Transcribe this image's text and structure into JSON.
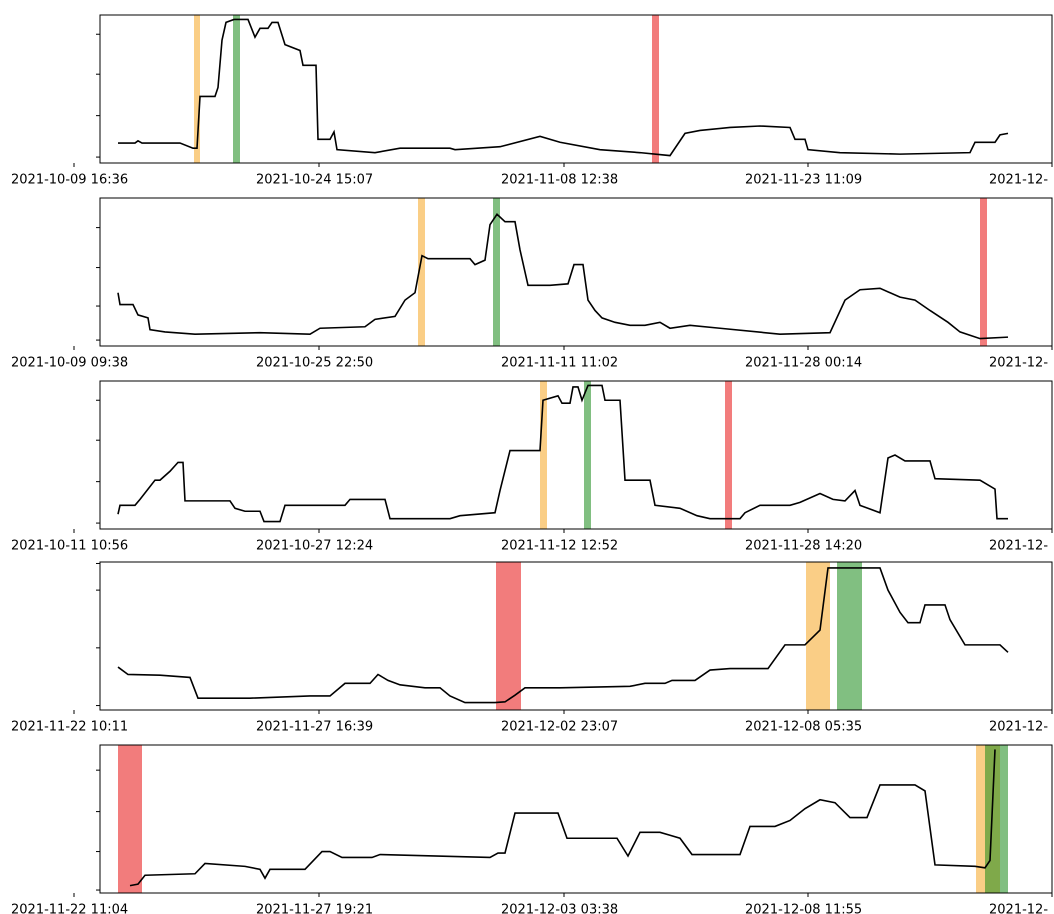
{
  "chart_data": [
    {
      "type": "line",
      "xlim": [
        100,
        1052
      ],
      "ylim": [
        0,
        100
      ],
      "xticks": [
        {
          "value": 74,
          "label": "2021-10-09 16:36"
        },
        {
          "value": 319,
          "label": "2021-10-24 15:07"
        },
        {
          "value": 564,
          "label": "2021-11-08 12:38"
        },
        {
          "value": 808,
          "label": "2021-11-23 11:09"
        },
        {
          "value": 1052,
          "label": "2021-12-"
        }
      ],
      "yticks": [
        4,
        32,
        60,
        87
      ],
      "x": [
        118,
        135,
        138,
        142,
        180,
        193,
        197,
        200,
        215,
        218,
        222,
        226,
        234,
        248,
        255,
        260,
        268,
        272,
        278,
        285,
        300,
        303,
        316,
        318,
        330,
        334,
        337,
        375,
        400,
        450,
        455,
        500,
        540,
        560,
        600,
        640,
        670,
        685,
        700,
        730,
        760,
        790,
        795,
        805,
        808,
        840,
        900,
        970,
        975,
        995,
        1000,
        1008
      ],
      "series": [
        {
          "color": "#000000",
          "values": [
            13.5,
            13.5,
            15,
            13.5,
            13.5,
            10,
            10,
            45,
            45,
            51,
            83,
            95,
            97,
            97,
            85,
            91,
            91,
            95,
            95,
            80,
            76,
            66,
            66,
            16,
            16,
            21,
            9,
            7,
            10,
            10,
            9,
            11,
            18,
            14,
            9,
            7,
            5,
            20,
            22,
            24,
            25,
            24,
            16,
            16,
            9,
            7,
            6,
            7,
            14,
            14,
            19,
            20
          ]
        }
      ],
      "spans": [
        {
          "start": 194,
          "end": 200,
          "color": "#f5a623"
        },
        {
          "start": 233,
          "end": 240,
          "color": "#1a8a1a"
        },
        {
          "start": 652,
          "end": 659,
          "color": "#e81010"
        }
      ]
    },
    {
      "type": "line",
      "xlim": [
        100,
        1052
      ],
      "ylim": [
        0,
        100
      ],
      "xticks": [
        {
          "value": 74,
          "label": "2021-10-09 09:38"
        },
        {
          "value": 319,
          "label": "2021-10-25 22:50"
        },
        {
          "value": 564,
          "label": "2021-11-11 11:02"
        },
        {
          "value": 808,
          "label": "2021-11-28 00:14"
        },
        {
          "value": 1052,
          "label": "2021-12-"
        }
      ],
      "yticks": [
        4,
        27,
        53,
        80
      ],
      "x": [
        118,
        120,
        133,
        138,
        148,
        150,
        165,
        195,
        260,
        310,
        320,
        365,
        375,
        395,
        405,
        415,
        422,
        428,
        470,
        475,
        485,
        490,
        497,
        505,
        515,
        520,
        528,
        550,
        568,
        574,
        583,
        588,
        595,
        602,
        615,
        630,
        645,
        660,
        670,
        690,
        720,
        780,
        830,
        845,
        860,
        880,
        900,
        915,
        930,
        948,
        960,
        980,
        1008
      ],
      "series": [
        {
          "color": "#000000",
          "values": [
            36,
            28,
            28,
            21,
            19,
            11,
            9.5,
            8,
            9,
            8,
            12,
            13,
            18,
            20,
            31,
            36,
            61,
            59,
            59,
            55,
            58,
            82,
            89,
            84,
            84,
            65,
            41,
            41,
            42,
            55,
            55,
            31,
            24,
            19,
            16,
            14,
            14,
            16,
            12,
            14,
            12,
            8,
            9,
            31,
            38,
            39,
            33,
            31,
            24,
            16,
            9.5,
            5,
            6
          ]
        }
      ],
      "spans": [
        {
          "start": 418,
          "end": 425,
          "color": "#f5a623"
        },
        {
          "start": 493,
          "end": 500,
          "color": "#1a8a1a"
        },
        {
          "start": 980,
          "end": 987,
          "color": "#e81010"
        }
      ]
    },
    {
      "type": "line",
      "xlim": [
        100,
        1052
      ],
      "ylim": [
        0,
        100
      ],
      "xticks": [
        {
          "value": 74,
          "label": "2021-10-11 10:56"
        },
        {
          "value": 319,
          "label": "2021-10-27 12:24"
        },
        {
          "value": 564,
          "label": "2021-11-12 12:52"
        },
        {
          "value": 808,
          "label": "2021-11-28 14:20"
        },
        {
          "value": 1052,
          "label": "2021-12-"
        }
      ],
      "yticks": [
        4,
        32,
        60,
        87
      ],
      "x": [
        118,
        120,
        135,
        140,
        155,
        160,
        170,
        178,
        183,
        185,
        230,
        235,
        245,
        260,
        264,
        280,
        285,
        345,
        350,
        385,
        390,
        450,
        460,
        495,
        500,
        510,
        540,
        543,
        558,
        562,
        570,
        573,
        578,
        582,
        588,
        602,
        605,
        620,
        625,
        650,
        655,
        680,
        697,
        710,
        740,
        745,
        760,
        790,
        800,
        820,
        833,
        845,
        855,
        860,
        880,
        888,
        895,
        905,
        930,
        935,
        980,
        995,
        997,
        1008
      ],
      "series": [
        {
          "color": "#000000",
          "values": [
            10,
            16,
            16,
            20,
            33,
            33,
            39,
            45,
            45,
            19,
            19,
            14,
            12,
            12,
            5,
            5,
            16,
            16,
            20,
            20,
            7,
            7,
            9,
            11,
            26,
            53,
            53,
            87,
            90,
            85,
            85,
            96,
            96,
            87,
            97,
            97,
            87,
            87,
            33,
            33,
            16,
            14,
            9,
            7,
            7,
            11,
            16,
            16,
            18,
            24,
            20,
            19,
            26,
            16,
            11,
            48,
            50,
            46,
            46,
            34,
            33,
            27,
            7,
            7
          ]
        }
      ],
      "spans": [
        {
          "start": 540,
          "end": 547,
          "color": "#f5a623"
        },
        {
          "start": 584,
          "end": 591,
          "color": "#1a8a1a"
        },
        {
          "start": 725,
          "end": 732,
          "color": "#e81010"
        }
      ]
    },
    {
      "type": "line",
      "xlim": [
        100,
        1052
      ],
      "ylim": [
        0,
        100
      ],
      "xticks": [
        {
          "value": 74,
          "label": "2021-11-22 10:11"
        },
        {
          "value": 319,
          "label": "2021-11-27 16:39"
        },
        {
          "value": 564,
          "label": "2021-12-02 23:07"
        },
        {
          "value": 808,
          "label": "2021-12-08 05:35"
        },
        {
          "value": 1052,
          "label": "2021-12-"
        }
      ],
      "yticks": [
        3,
        42,
        81,
        99
      ],
      "x": [
        118,
        128,
        160,
        190,
        198,
        250,
        310,
        330,
        345,
        370,
        378,
        388,
        400,
        425,
        440,
        450,
        465,
        495,
        505,
        515,
        525,
        545,
        560,
        630,
        645,
        665,
        672,
        695,
        710,
        730,
        768,
        785,
        805,
        820,
        828,
        880,
        888,
        900,
        908,
        920,
        925,
        945,
        950,
        965,
        975,
        1000,
        1008
      ],
      "series": [
        {
          "color": "#000000",
          "values": [
            29,
            24,
            23.5,
            22,
            8,
            8,
            9.5,
            9.5,
            18,
            18,
            24,
            20,
            17,
            15,
            15,
            9.5,
            5,
            5,
            5.5,
            10,
            15,
            15,
            15,
            16,
            18,
            18,
            20,
            20,
            27,
            28,
            28,
            44,
            44,
            54,
            96,
            96,
            81,
            66,
            59,
            59,
            71,
            71,
            61,
            44,
            44,
            44,
            39
          ]
        }
      ],
      "spans": [
        {
          "start": 496,
          "end": 521,
          "color": "#e81010"
        },
        {
          "start": 806,
          "end": 830,
          "color": "#f5a623"
        },
        {
          "start": 837,
          "end": 862,
          "color": "#1a8a1a"
        }
      ]
    },
    {
      "type": "line",
      "xlim": [
        100,
        1052
      ],
      "ylim": [
        0,
        100
      ],
      "xticks": [
        {
          "value": 74,
          "label": "2021-11-22 11:04"
        },
        {
          "value": 319,
          "label": "2021-11-27 19:21"
        },
        {
          "value": 564,
          "label": "2021-12-03 03:38"
        },
        {
          "value": 808,
          "label": "2021-12-08 11:55"
        },
        {
          "value": 1052,
          "label": "2021-12-"
        }
      ],
      "yticks": [
        2,
        28,
        55,
        83
      ],
      "x": [
        130,
        138,
        145,
        195,
        205,
        245,
        260,
        265,
        270,
        305,
        322,
        330,
        342,
        372,
        380,
        490,
        498,
        505,
        515,
        558,
        567,
        617,
        628,
        640,
        660,
        670,
        680,
        692,
        740,
        750,
        775,
        790,
        805,
        820,
        835,
        850,
        867,
        880,
        915,
        925,
        935,
        975,
        985,
        990,
        995
      ],
      "series": [
        {
          "color": "#000000",
          "values": [
            5,
            6,
            12,
            13,
            20,
            18,
            16,
            10,
            16,
            16,
            28,
            28,
            24,
            24,
            26,
            24,
            27,
            27,
            54,
            54,
            37,
            37,
            25,
            41,
            41,
            39,
            37,
            26,
            26,
            45,
            45,
            49,
            57,
            63,
            61,
            51,
            51,
            73,
            73,
            69,
            19,
            18,
            17,
            22,
            97
          ]
        }
      ],
      "spans": [
        {
          "start": 118,
          "end": 142,
          "color": "#e81010"
        },
        {
          "start": 976,
          "end": 1000,
          "color": "#f5a623"
        },
        {
          "start": 985,
          "end": 1008,
          "color": "#1a8a1a"
        }
      ]
    }
  ]
}
